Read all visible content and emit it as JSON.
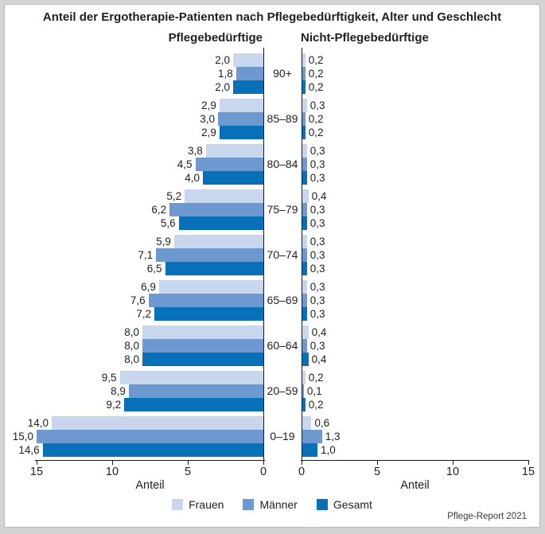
{
  "card": {
    "title": "Anteil der Ergotherapie-Patienten nach Pflegebedürftigkeit, Alter und Geschlecht",
    "footer": "Pflege-Report 2021"
  },
  "chart_data": {
    "type": "bar",
    "variant": "horizontal-butterfly-pyramid",
    "categories": [
      "90+",
      "85–89",
      "80–84",
      "75–79",
      "70–74",
      "65–69",
      "60–64",
      "20–59",
      "0–19"
    ],
    "panels": [
      {
        "id": "left",
        "title": "Pflegebedürftige",
        "direction": "left",
        "xlabel": "Anteil",
        "x_ticks": [
          15,
          10,
          5,
          0
        ],
        "xlim": [
          0,
          15
        ],
        "series": [
          {
            "name": "Frauen",
            "values": [
              2.0,
              2.9,
              3.8,
              5.2,
              5.9,
              6.9,
              8.0,
              9.5,
              14.0
            ]
          },
          {
            "name": "Männer",
            "values": [
              1.8,
              3.0,
              4.5,
              6.2,
              7.1,
              7.6,
              8.0,
              8.9,
              15.0
            ]
          },
          {
            "name": "Gesamt",
            "values": [
              2.0,
              2.9,
              4.0,
              5.6,
              6.5,
              7.2,
              8.0,
              9.2,
              14.6
            ]
          }
        ]
      },
      {
        "id": "right",
        "title": "Nicht-Pflegebedürftige",
        "direction": "right",
        "xlabel": "Anteil",
        "x_ticks": [
          0,
          5,
          10,
          15
        ],
        "xlim": [
          0,
          15
        ],
        "series": [
          {
            "name": "Frauen",
            "values": [
              0.2,
              0.3,
              0.3,
              0.4,
              0.3,
              0.3,
              0.4,
              0.2,
              0.6
            ]
          },
          {
            "name": "Männer",
            "values": [
              0.2,
              0.2,
              0.3,
              0.3,
              0.3,
              0.3,
              0.3,
              0.1,
              1.3
            ]
          },
          {
            "name": "Gesamt",
            "values": [
              0.2,
              0.2,
              0.3,
              0.3,
              0.3,
              0.3,
              0.4,
              0.2,
              1.0
            ]
          }
        ]
      }
    ],
    "legend": [
      {
        "label": "Frauen",
        "color": "#c9d7ee"
      },
      {
        "label": "Männer",
        "color": "#6d98d0"
      },
      {
        "label": "Gesamt",
        "color": "#0870b8"
      }
    ],
    "value_label_decimal_separator": ",",
    "grid": false,
    "legend_position": "bottom-center"
  }
}
